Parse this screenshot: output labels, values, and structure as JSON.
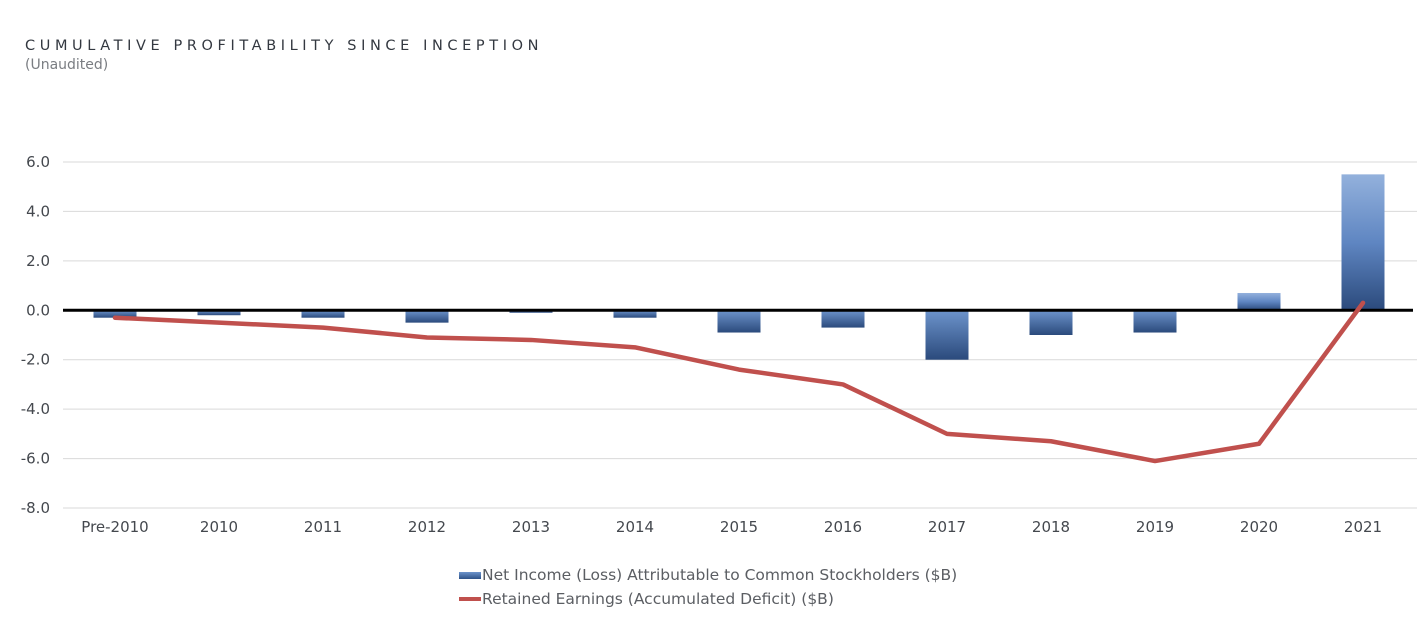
{
  "header": {
    "title": "CUMULATIVE PROFITABILITY SINCE INCEPTION",
    "subtitle": "(Unaudited)"
  },
  "colors": {
    "bar_top": "#8eaedb",
    "bar_bottom": "#2b4a7c",
    "line": "#c0504d",
    "zero_axis": "#000000",
    "grid": "#d9d9d9"
  },
  "chart_data": {
    "type": "bar",
    "title": "CUMULATIVE PROFITABILITY SINCE INCEPTION",
    "subtitle": "(Unaudited)",
    "xlabel": "",
    "ylabel": "",
    "ylim": [
      -8.0,
      6.0
    ],
    "yticks": [
      "6.0",
      "4.0",
      "2.0",
      "0.0",
      "-2.0",
      "-4.0",
      "-6.0",
      "-8.0"
    ],
    "ytick_values": [
      6,
      4,
      2,
      0,
      -2,
      -4,
      -6,
      -8
    ],
    "grid": true,
    "legend_position": "bottom-center",
    "categories": [
      "Pre-2010",
      "2010",
      "2011",
      "2012",
      "2013",
      "2014",
      "2015",
      "2016",
      "2017",
      "2018",
      "2019",
      "2020",
      "2021"
    ],
    "series": [
      {
        "name": "Net Income (Loss) Attributable to Common Stockholders ($B)",
        "type": "bar",
        "values": [
          -0.3,
          -0.2,
          -0.3,
          -0.5,
          -0.1,
          -0.3,
          -0.9,
          -0.7,
          -2.0,
          -1.0,
          -0.9,
          0.7,
          5.5
        ]
      },
      {
        "name": "Retained Earnings (Accumulated Deficit) ($B)",
        "type": "line",
        "values": [
          -0.3,
          -0.5,
          -0.7,
          -1.1,
          -1.2,
          -1.5,
          -2.4,
          -3.0,
          -5.0,
          -5.3,
          -6.1,
          -5.4,
          0.3
        ]
      }
    ]
  }
}
